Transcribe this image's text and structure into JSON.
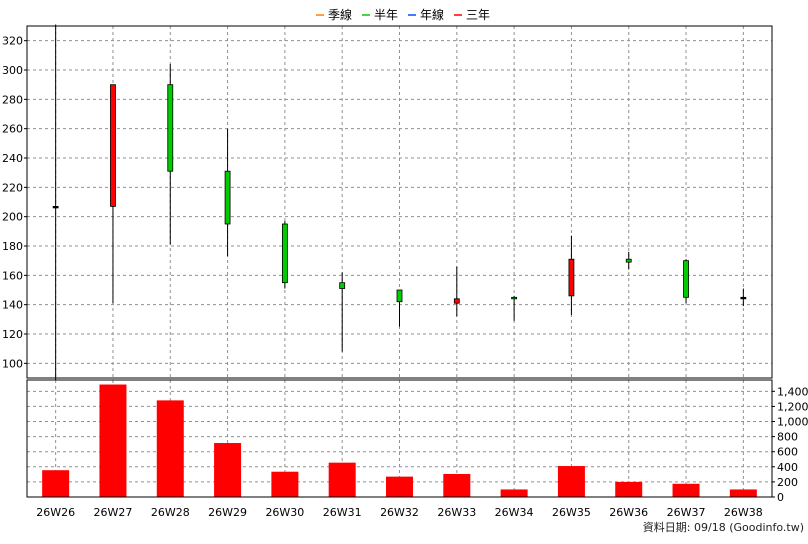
{
  "chart_data": {
    "type": "candlestick",
    "legend": [
      {
        "label": "季線",
        "color": "#ff8000"
      },
      {
        "label": "半年",
        "color": "#00cc00"
      },
      {
        "label": "年線",
        "color": "#0050ff"
      },
      {
        "label": "三年",
        "color": "#ff0000"
      }
    ],
    "categories": [
      "26W26",
      "26W27",
      "26W28",
      "26W29",
      "26W30",
      "26W31",
      "26W32",
      "26W33",
      "26W34",
      "26W35",
      "26W36",
      "26W37",
      "26W38"
    ],
    "price_axis": {
      "ylim": [
        90,
        330
      ],
      "ticks": [
        100,
        120,
        140,
        160,
        180,
        200,
        220,
        240,
        260,
        280,
        300,
        320
      ]
    },
    "volume_axis": {
      "ylim": [
        0,
        1550
      ],
      "ticks": [
        0,
        200,
        400,
        600,
        800,
        1000,
        1200,
        1400
      ],
      "tick_labels": [
        "0",
        "200",
        "400",
        "600",
        "800",
        "1,000",
        "1,200",
        "1,400"
      ]
    },
    "candles": [
      {
        "open": 207,
        "high": 331,
        "low": 89,
        "close": 207
      },
      {
        "open": 207,
        "high": 290,
        "low": 141,
        "close": 290
      },
      {
        "open": 290,
        "high": 304,
        "low": 181,
        "close": 231
      },
      {
        "open": 231,
        "high": 260,
        "low": 173,
        "close": 195
      },
      {
        "open": 195,
        "high": 197,
        "low": 151,
        "close": 155
      },
      {
        "open": 155,
        "high": 162,
        "low": 108,
        "close": 151
      },
      {
        "open": 150,
        "high": 150,
        "low": 125,
        "close": 142
      },
      {
        "open": 141,
        "high": 166,
        "low": 132,
        "close": 144
      },
      {
        "open": 145,
        "high": 146,
        "low": 129,
        "close": 144
      },
      {
        "open": 146,
        "high": 187,
        "low": 133,
        "close": 171
      },
      {
        "open": 171,
        "high": 176,
        "low": 164,
        "close": 169
      },
      {
        "open": 170,
        "high": 171,
        "low": 141,
        "close": 145
      },
      {
        "open": 145,
        "high": 151,
        "low": 139,
        "close": 145
      }
    ],
    "volumes": [
      355,
      1490,
      1280,
      715,
      335,
      455,
      270,
      305,
      100,
      410,
      200,
      175,
      100
    ],
    "colors": {
      "up": "#ff0000",
      "down": "#00cc00",
      "volume": "#ff0000",
      "grid": "#909090"
    }
  },
  "footer": {
    "note": "資料日期: 09/18  (Goodinfo.tw)"
  }
}
